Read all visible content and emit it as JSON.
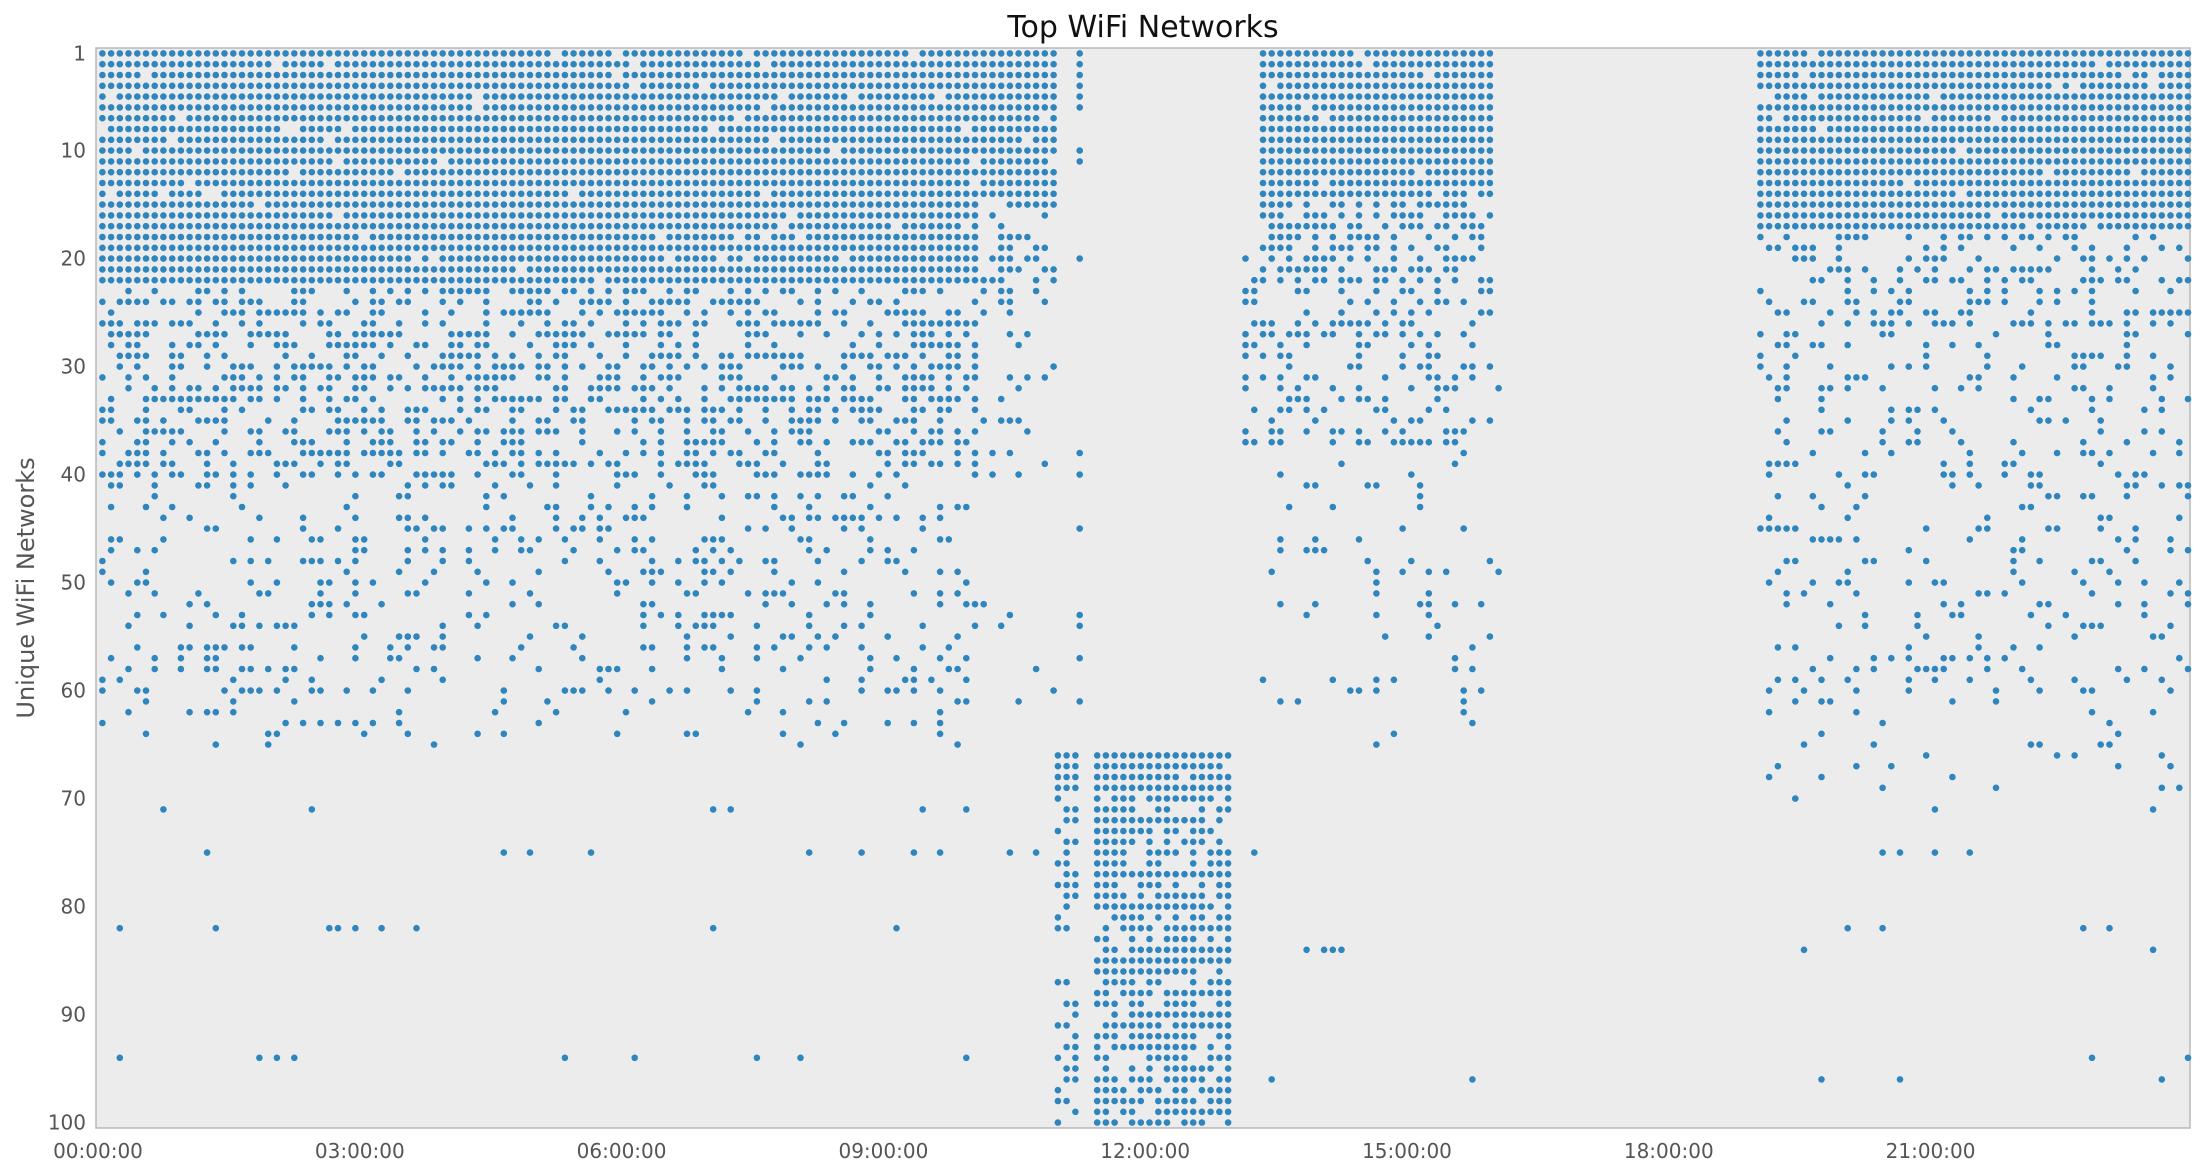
{
  "chart_data": {
    "type": "scatter",
    "title": "Top WiFi Networks",
    "xlabel": "",
    "ylabel": "Unique WiFi Networks",
    "x_unit": "time of day (hours)",
    "xlim": [
      0,
      23.95
    ],
    "ylim": [
      100.5,
      0.5
    ],
    "y_inverted": true,
    "grid": false,
    "legend": "none",
    "colors": {
      "point": "#2f86be",
      "plot_background": "#ececec",
      "axes_frame": "#b8b8b8"
    },
    "x_ticks": [
      {
        "value": 0,
        "label": "00:00:00"
      },
      {
        "value": 3,
        "label": "03:00:00"
      },
      {
        "value": 6,
        "label": "06:00:00"
      },
      {
        "value": 9,
        "label": "09:00:00"
      },
      {
        "value": 12,
        "label": "12:00:00"
      },
      {
        "value": 15,
        "label": "15:00:00"
      },
      {
        "value": 18,
        "label": "18:00:00"
      },
      {
        "value": 21,
        "label": "21:00:00"
      }
    ],
    "y_ticks": [
      {
        "value": 1,
        "label": "1"
      },
      {
        "value": 10,
        "label": "10"
      },
      {
        "value": 20,
        "label": "20"
      },
      {
        "value": 30,
        "label": "30"
      },
      {
        "value": 40,
        "label": "40"
      },
      {
        "value": 50,
        "label": "50"
      },
      {
        "value": 60,
        "label": "60"
      },
      {
        "value": 70,
        "label": "70"
      },
      {
        "value": 80,
        "label": "80"
      },
      {
        "value": 90,
        "label": "90"
      },
      {
        "value": 100,
        "label": "100"
      }
    ],
    "sample_interval_hours": 0.1,
    "series": [
      {
        "segments": [
          {
            "x_start": 0.05,
            "x_end": 10.05,
            "dense_y": [
              1,
              22
            ],
            "sparse_y": [
              [
                23,
                40,
                0.5
              ],
              [
                41,
                60,
                0.22
              ],
              [
                61,
                65,
                0.08
              ]
            ],
            "rare_y": [
              71,
              75,
              82,
              94
            ]
          },
          {
            "x_start": 10.15,
            "x_end": 10.95,
            "dense_y": [
              1,
              14
            ],
            "sparse_y": [
              [
                15,
                25,
                0.35
              ],
              [
                26,
                40,
                0.15
              ],
              [
                50,
                62,
                0.05
              ]
            ],
            "rare_y": [
              75
            ]
          },
          {
            "x_start": 11.25,
            "x_end": 11.25,
            "dense_y": [
              1,
              6
            ],
            "sparse_y": [
              [
                10,
                11,
                1.0
              ],
              [
                20,
                20,
                1.0
              ],
              [
                30,
                62,
                0.2
              ]
            ],
            "rare_y": []
          },
          {
            "x_start": 11.0,
            "x_end": 11.2,
            "dense_y": [
              66,
              69
            ],
            "sparse_y": [
              [
                70,
                100,
                0.45
              ]
            ],
            "rare_y": []
          },
          {
            "x_start": 11.45,
            "x_end": 12.95,
            "dense_y": [
              66,
              69
            ],
            "sparse_y": [
              [
                70,
                100,
                0.75
              ]
            ],
            "rare_y": []
          },
          {
            "x_start": 13.15,
            "x_end": 13.25,
            "dense_y": [],
            "sparse_y": [
              [
                20,
                38,
                0.4
              ]
            ],
            "rare_y": [
              70,
              75
            ]
          },
          {
            "x_start": 13.35,
            "x_end": 15.95,
            "dense_y": [
              1,
              14
            ],
            "sparse_y": [
              [
                15,
                22,
                0.65
              ],
              [
                23,
                37,
                0.35
              ],
              [
                38,
                65,
                0.07
              ]
            ],
            "rare_y": [
              84,
              96
            ]
          },
          {
            "x_start": 16.05,
            "x_end": 16.05,
            "dense_y": [],
            "sparse_y": [
              [
                32,
                32,
                1.0
              ],
              [
                49,
                49,
                1.0
              ]
            ],
            "rare_y": []
          },
          {
            "x_start": 19.05,
            "x_end": 23.95,
            "dense_y": [
              1,
              17
            ],
            "sparse_y": [
              [
                18,
                26,
                0.3
              ],
              [
                27,
                40,
                0.22
              ],
              [
                41,
                60,
                0.15
              ],
              [
                61,
                71,
                0.07
              ]
            ],
            "rare_y": [
              75,
              82,
              84,
              94,
              96
            ]
          }
        ]
      }
    ]
  }
}
